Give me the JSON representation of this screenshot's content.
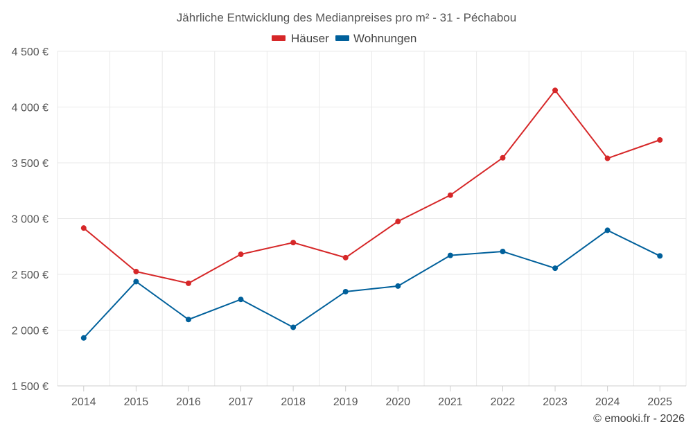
{
  "chart_data": {
    "type": "line",
    "title": "Jährliche Entwicklung des Medianpreises pro m² - 31 - Péchabou",
    "categories": [
      "2014",
      "2015",
      "2016",
      "2017",
      "2018",
      "2019",
      "2020",
      "2021",
      "2022",
      "2023",
      "2024",
      "2025"
    ],
    "series": [
      {
        "name": "Häuser",
        "color": "#d62728",
        "values": [
          2915,
          2525,
          2420,
          2680,
          2785,
          2650,
          2975,
          3210,
          3545,
          4150,
          3540,
          3705
        ]
      },
      {
        "name": "Wohnungen",
        "color": "#00609b",
        "values": [
          1930,
          2435,
          2095,
          2275,
          2025,
          2345,
          2395,
          2670,
          2705,
          2555,
          2895,
          2665
        ]
      }
    ],
    "ylim": [
      1500,
      4500
    ],
    "yticks": [
      1500,
      2000,
      2500,
      3000,
      3500,
      4000,
      4500
    ],
    "ytick_labels": [
      "1 500 €",
      "2 000 €",
      "2 500 €",
      "3 000 €",
      "3 500 €",
      "4 000 €",
      "4 500 €"
    ],
    "xlabel": "",
    "ylabel": "",
    "legend_position": "top-center",
    "grid": true
  },
  "credit": "© emooki.fr - 2026"
}
